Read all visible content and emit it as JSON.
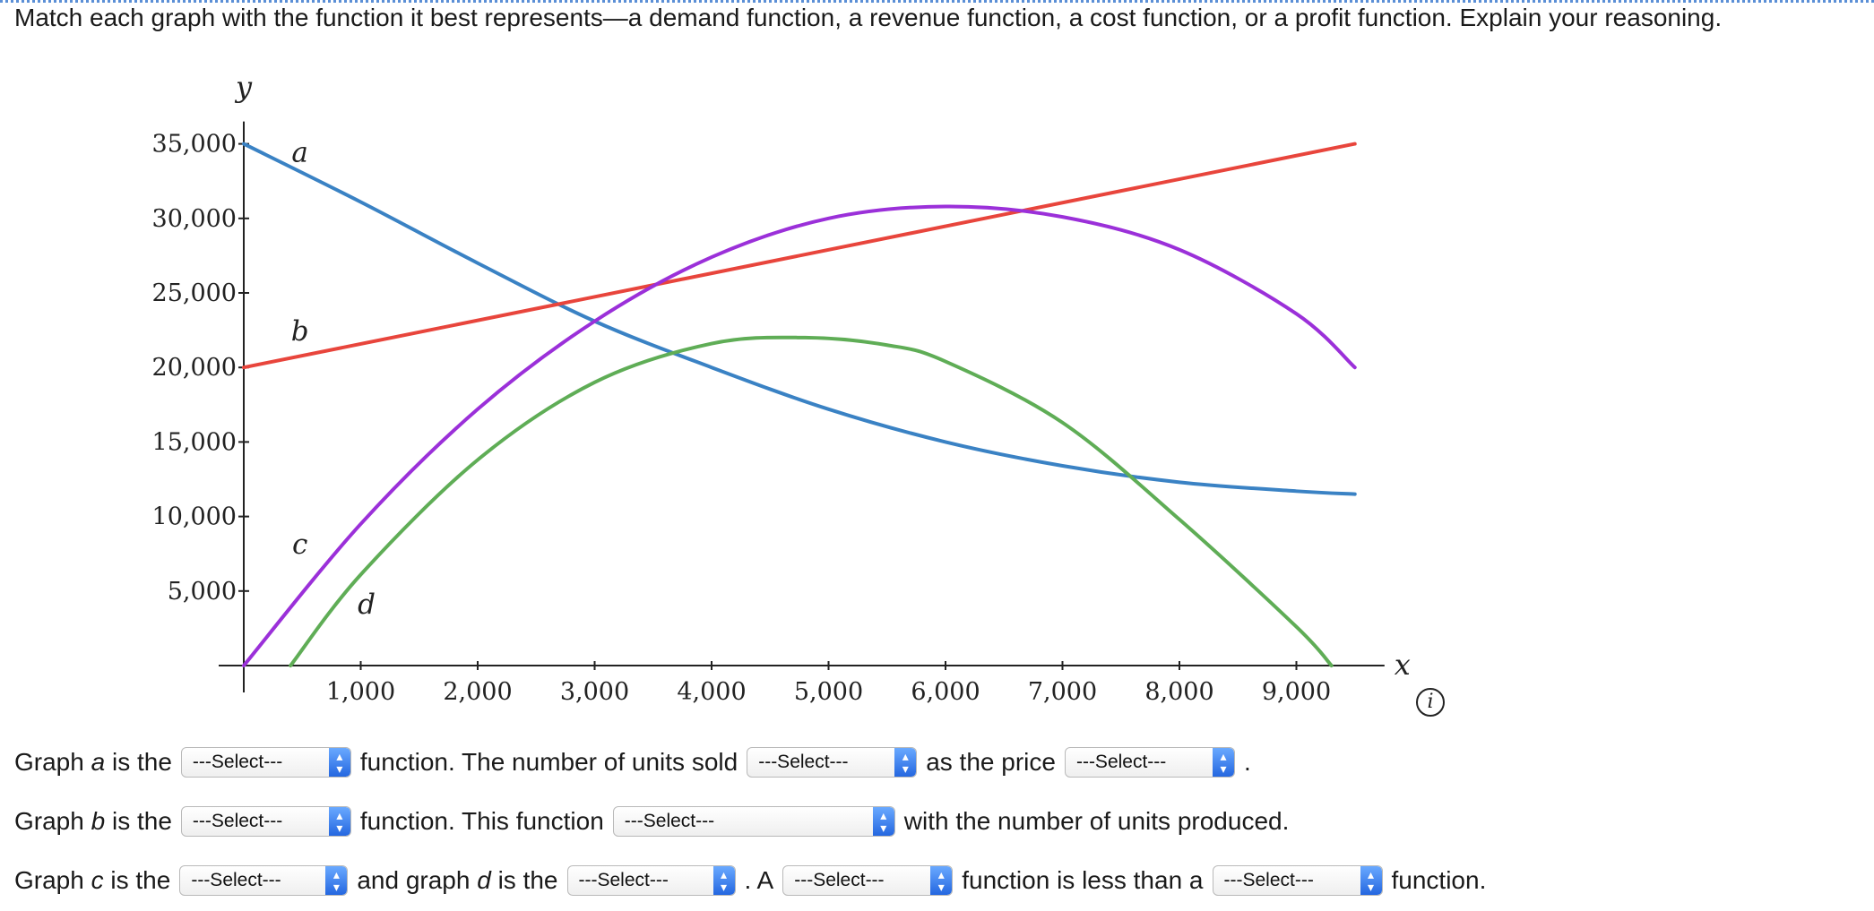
{
  "prompt": "Match each graph with the function it best represents—a demand function, a revenue function, a cost function, or a profit function. Explain your reasoning.",
  "icons": {
    "info": "info-icon",
    "dropdown": "chevron-updown-icon"
  },
  "questions": {
    "row1": {
      "t1": "Graph",
      "var": "a",
      "t2": "is the",
      "sel1": "---Select---",
      "t3": "function. The number of units sold",
      "sel2": "---Select---",
      "t4": "as the price",
      "sel3": "---Select---",
      "t5": "."
    },
    "row2": {
      "t1": "Graph",
      "var": "b",
      "t2": "is the",
      "sel1": "---Select---",
      "t3": "function. This function",
      "sel2": "---Select---",
      "t4": "with the number of units produced."
    },
    "row3": {
      "t1": "Graph",
      "var1": "c",
      "t2": "is the",
      "sel1": "---Select---",
      "t3": "and graph",
      "var2": "d",
      "t4": "is the",
      "sel2": "---Select---",
      "t5": ". A",
      "sel3": "---Select---",
      "t6": "function is less than a",
      "sel4": "---Select---",
      "t7": "function."
    }
  },
  "chart_data": {
    "type": "line",
    "xlabel": "x",
    "ylabel": "y",
    "xlim": [
      0,
      9600
    ],
    "ylim": [
      0,
      35000
    ],
    "x_ticks": [
      1000,
      2000,
      3000,
      4000,
      5000,
      6000,
      7000,
      8000,
      9000
    ],
    "x_tick_labels": [
      "1,000",
      "2,000",
      "3,000",
      "4,000",
      "5,000",
      "6,000",
      "7,000",
      "8,000",
      "9,000"
    ],
    "y_ticks": [
      5000,
      10000,
      15000,
      20000,
      25000,
      30000,
      35000
    ],
    "y_tick_labels": [
      "5,000",
      "10,000",
      "15,000",
      "20,000",
      "25,000",
      "30,000",
      "35,000"
    ],
    "grid": false,
    "series": [
      {
        "name": "a",
        "color": "#3a82c4",
        "x": [
          0,
          1000,
          2000,
          3000,
          4000,
          5000,
          6000,
          7000,
          8000,
          9000,
          9500
        ],
        "y": [
          35000,
          31100,
          27000,
          23100,
          20000,
          17200,
          15000,
          13400,
          12300,
          11700,
          11500
        ],
        "label_at": [
          480,
          33800
        ]
      },
      {
        "name": "b",
        "color": "#e8453c",
        "x": [
          0,
          9500
        ],
        "y": [
          20000,
          35000
        ],
        "label_at": [
          480,
          21800
        ]
      },
      {
        "name": "c",
        "color": "#9b30d9",
        "x": [
          0,
          1000,
          2000,
          3000,
          4000,
          5000,
          6000,
          7000,
          8000,
          9000,
          9500
        ],
        "y": [
          0,
          9500,
          17200,
          23100,
          27400,
          30000,
          30800,
          30100,
          27900,
          23600,
          20000
        ],
        "label_at": [
          480,
          7500
        ]
      },
      {
        "name": "d",
        "color": "#5fad56",
        "x": [
          400,
          1000,
          2000,
          3000,
          4000,
          4800,
          5500,
          6000,
          7000,
          8000,
          9000,
          9300
        ],
        "y": [
          0,
          6100,
          13800,
          19000,
          21600,
          22000,
          21500,
          20400,
          16300,
          9800,
          2600,
          0
        ],
        "label_at": [
          1050,
          3500
        ]
      }
    ]
  }
}
